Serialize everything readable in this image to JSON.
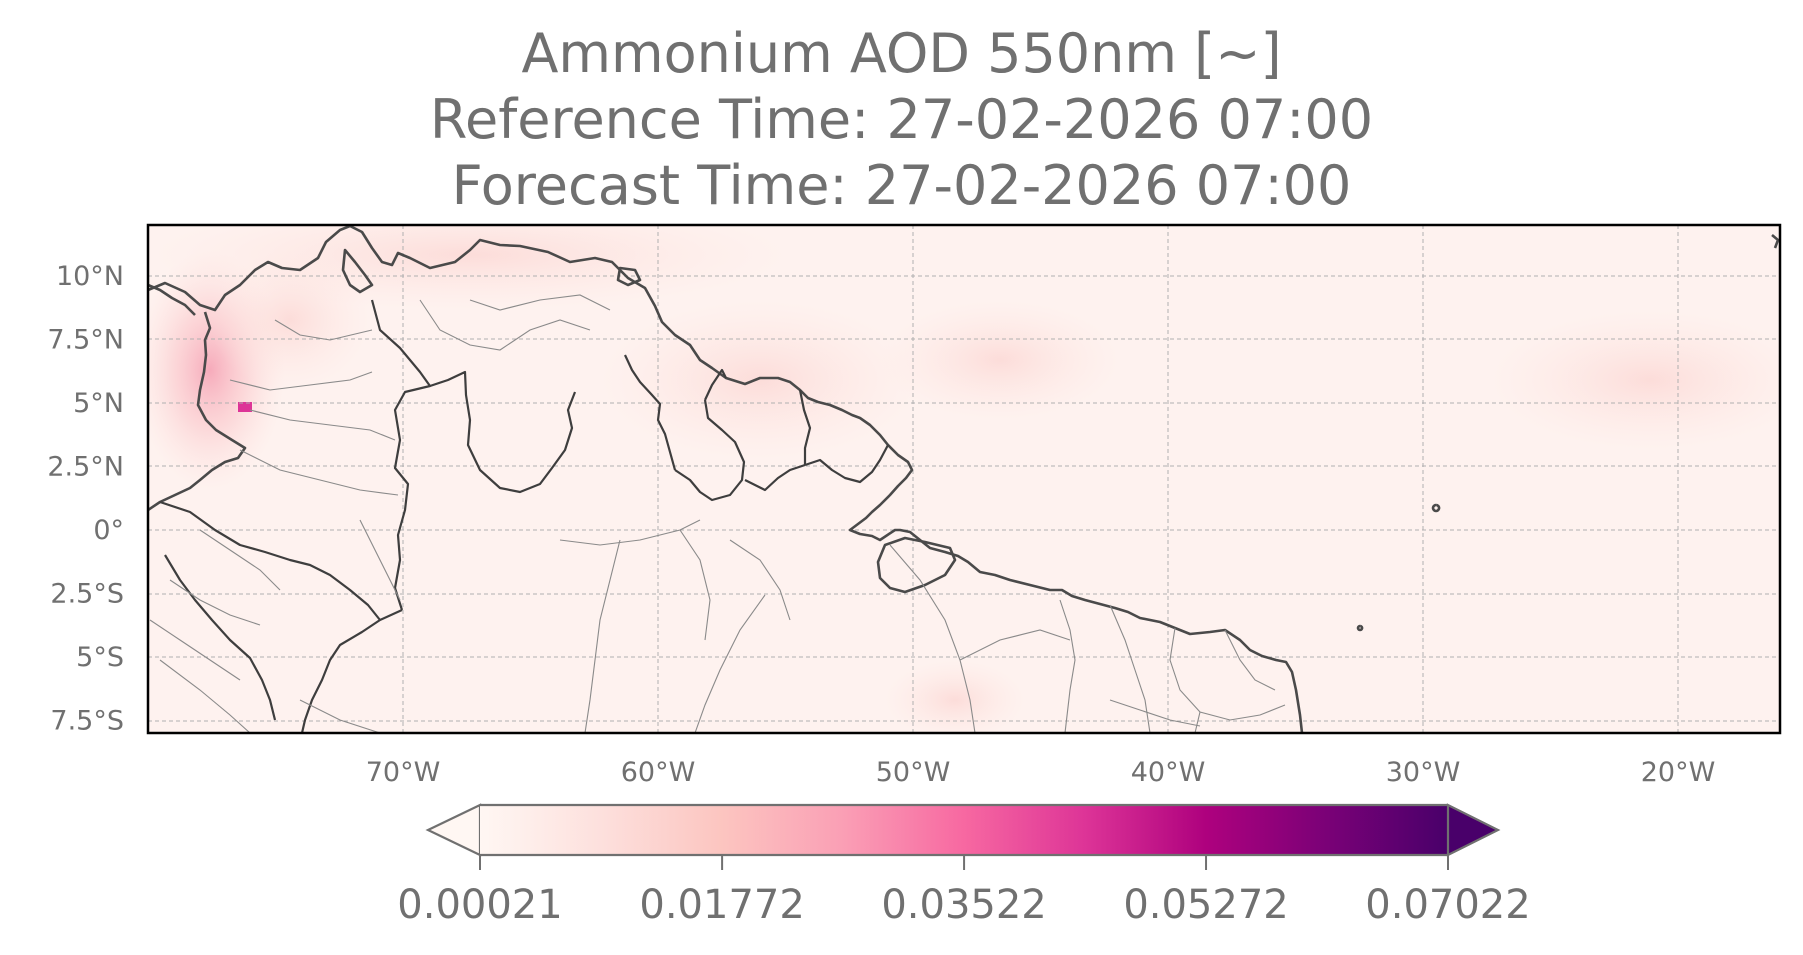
{
  "title": {
    "line1": "Ammonium AOD 550nm [~]",
    "line2": "Reference Time: 27-02-2026 07:00",
    "line3": "Forecast Time: 27-02-2026 07:00"
  },
  "map": {
    "lon_range": [
      -80,
      -16
    ],
    "lat_range": [
      -8,
      12
    ],
    "lat_ticks": [
      {
        "value": 10,
        "label": "10°N"
      },
      {
        "value": 7.5,
        "label": "7.5°N"
      },
      {
        "value": 5,
        "label": "5°N"
      },
      {
        "value": 2.5,
        "label": "2.5°N"
      },
      {
        "value": 0,
        "label": "0°"
      },
      {
        "value": -2.5,
        "label": "2.5°S"
      },
      {
        "value": -5,
        "label": "5°S"
      },
      {
        "value": -7.5,
        "label": "7.5°S"
      }
    ],
    "lon_ticks": [
      {
        "value": -70,
        "label": "70°W"
      },
      {
        "value": -60,
        "label": "60°W"
      },
      {
        "value": -50,
        "label": "50°W"
      },
      {
        "value": -40,
        "label": "40°W"
      },
      {
        "value": -30,
        "label": "30°W"
      },
      {
        "value": -20,
        "label": "20°W"
      }
    ],
    "gridlines": true
  },
  "colorbar": {
    "colormap": "RdPu",
    "extend": "both",
    "min": 0.00021,
    "max": 0.07022,
    "tick_labels": [
      "0.00021",
      "0.01772",
      "0.03522",
      "0.05272",
      "0.07022"
    ]
  }
}
